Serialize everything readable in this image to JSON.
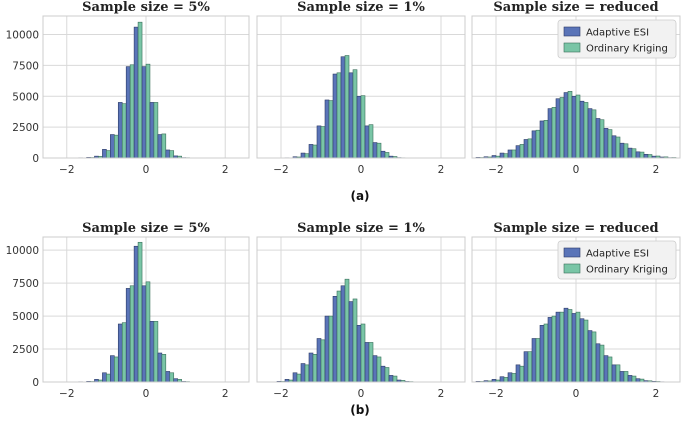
{
  "colors": {
    "adaptive_fill": "#5a74b8",
    "adaptive_edge": "#2b3a66",
    "kriging_fill": "#79c5a6",
    "kriging_edge": "#3a6f5b",
    "panel_bg": "#ffffff",
    "panel_border": "#cccccc",
    "grid": "#d9d9d9",
    "legend_bg": "#f2f2f2"
  },
  "figure": {
    "rows": [
      {
        "caption": "(a)"
      },
      {
        "caption": "(b)"
      }
    ]
  },
  "chart_data": [
    {
      "type": "bar",
      "row": "(a)",
      "title": "Sample size = 5%",
      "xlim": [
        -2.6,
        2.6
      ],
      "ylim": [
        0,
        11500
      ],
      "xticks": [
        -2,
        0,
        2
      ],
      "yticks": [
        0,
        2500,
        5000,
        7500,
        10000
      ],
      "xtick_labels": [
        "−2",
        "0",
        "2"
      ],
      "ytick_labels": [
        "0",
        "2500",
        "5000",
        "7500",
        "10000"
      ],
      "x": [
        -2.0,
        -1.8,
        -1.6,
        -1.4,
        -1.2,
        -1.0,
        -0.8,
        -0.6,
        -0.4,
        -0.2,
        0.0,
        0.2,
        0.4,
        0.6,
        0.8,
        1.0,
        1.2,
        1.4,
        1.6,
        1.8,
        2.0
      ],
      "series": [
        {
          "name": "Adaptive ESI",
          "values": [
            0,
            0,
            20,
            50,
            150,
            700,
            1900,
            4500,
            7400,
            10600,
            7400,
            4500,
            1900,
            650,
            170,
            30,
            0,
            0,
            0,
            0,
            0
          ]
        },
        {
          "name": "Ordinary Kriging",
          "values": [
            0,
            0,
            15,
            40,
            130,
            600,
            1850,
            4400,
            7550,
            11000,
            7600,
            4500,
            1950,
            600,
            150,
            25,
            0,
            0,
            0,
            0,
            0
          ]
        }
      ],
      "legend": false
    },
    {
      "type": "bar",
      "row": "(a)",
      "title": "Sample size = 1%",
      "xlim": [
        -2.6,
        2.6
      ],
      "ylim": [
        0,
        11500
      ],
      "xticks": [
        -2,
        0,
        2
      ],
      "yticks": [
        0,
        2500,
        5000,
        7500,
        10000
      ],
      "xtick_labels": [
        "−2",
        "0",
        "2"
      ],
      "ytick_labels": [],
      "x": [
        -2.0,
        -1.8,
        -1.6,
        -1.4,
        -1.2,
        -1.0,
        -0.8,
        -0.6,
        -0.4,
        -0.2,
        0.0,
        0.2,
        0.4,
        0.6,
        0.8,
        1.0,
        1.2,
        1.4,
        1.6,
        1.8,
        2.0
      ],
      "series": [
        {
          "name": "Adaptive ESI",
          "values": [
            0,
            20,
            100,
            400,
            1100,
            2600,
            4700,
            6800,
            8200,
            6900,
            5000,
            2600,
            1250,
            550,
            150,
            30,
            0,
            0,
            0,
            0,
            0
          ]
        },
        {
          "name": "Ordinary Kriging",
          "values": [
            0,
            15,
            80,
            350,
            1050,
            2550,
            4650,
            6900,
            8300,
            7150,
            5050,
            2700,
            1200,
            450,
            120,
            20,
            0,
            0,
            0,
            0,
            0
          ]
        }
      ],
      "legend": false
    },
    {
      "type": "bar",
      "row": "(a)",
      "title": "Sample size = reduced",
      "xlim": [
        -2.6,
        2.6
      ],
      "ylim": [
        0,
        11500
      ],
      "xticks": [
        -2,
        0,
        2
      ],
      "yticks": [
        0,
        2500,
        5000,
        7500,
        10000
      ],
      "xtick_labels": [
        "−2",
        "0",
        "2"
      ],
      "ytick_labels": [],
      "x": [
        -2.4,
        -2.2,
        -2.0,
        -1.8,
        -1.6,
        -1.4,
        -1.2,
        -1.0,
        -0.8,
        -0.6,
        -0.4,
        -0.2,
        0.0,
        0.2,
        0.4,
        0.6,
        0.8,
        1.0,
        1.2,
        1.4,
        1.6,
        1.8,
        2.0,
        2.2,
        2.4
      ],
      "series": [
        {
          "name": "Adaptive ESI",
          "values": [
            50,
            100,
            200,
            400,
            650,
            1000,
            1500,
            2200,
            3000,
            4000,
            4800,
            5300,
            5000,
            4600,
            4000,
            3200,
            2400,
            1800,
            1200,
            800,
            500,
            300,
            150,
            80,
            30
          ]
        },
        {
          "name": "Ordinary Kriging",
          "values": [
            40,
            80,
            150,
            350,
            650,
            1100,
            1550,
            2250,
            3050,
            4100,
            4900,
            5400,
            5100,
            4500,
            3900,
            3100,
            2300,
            1700,
            1150,
            750,
            480,
            280,
            160,
            90,
            40
          ]
        }
      ],
      "legend": true,
      "legend_position": "top-right"
    },
    {
      "type": "bar",
      "row": "(b)",
      "title": "Sample size = 5%",
      "xlim": [
        -2.6,
        2.6
      ],
      "ylim": [
        0,
        11000
      ],
      "xticks": [
        -2,
        0,
        2
      ],
      "yticks": [
        0,
        2500,
        5000,
        7500,
        10000
      ],
      "xtick_labels": [
        "−2",
        "0",
        "2"
      ],
      "ytick_labels": [
        "0",
        "2500",
        "5000",
        "7500",
        "10000"
      ],
      "x": [
        -2.0,
        -1.8,
        -1.6,
        -1.4,
        -1.2,
        -1.0,
        -0.8,
        -0.6,
        -0.4,
        -0.2,
        0.0,
        0.2,
        0.4,
        0.6,
        0.8,
        1.0,
        1.2,
        1.4,
        1.6,
        1.8,
        2.0
      ],
      "series": [
        {
          "name": "Adaptive ESI",
          "values": [
            0,
            0,
            20,
            50,
            200,
            700,
            2000,
            4400,
            7100,
            10300,
            7300,
            4600,
            2200,
            800,
            250,
            40,
            0,
            0,
            0,
            0,
            0
          ]
        },
        {
          "name": "Ordinary Kriging",
          "values": [
            0,
            0,
            15,
            40,
            150,
            600,
            1900,
            4500,
            7300,
            10600,
            7600,
            4600,
            2100,
            700,
            200,
            30,
            0,
            0,
            0,
            0,
            0
          ]
        }
      ],
      "legend": false
    },
    {
      "type": "bar",
      "row": "(b)",
      "title": "Sample size = 1%",
      "xlim": [
        -2.6,
        2.6
      ],
      "ylim": [
        0,
        11000
      ],
      "xticks": [
        -2,
        0,
        2
      ],
      "yticks": [
        0,
        2500,
        5000,
        7500,
        10000
      ],
      "xtick_labels": [
        "−2",
        "0",
        "2"
      ],
      "ytick_labels": [],
      "x": [
        -2.0,
        -1.8,
        -1.6,
        -1.4,
        -1.2,
        -1.0,
        -0.8,
        -0.6,
        -0.4,
        -0.2,
        0.0,
        0.2,
        0.4,
        0.6,
        0.8,
        1.0,
        1.2,
        1.4,
        1.6,
        1.8,
        2.0
      ],
      "series": [
        {
          "name": "Adaptive ESI",
          "values": [
            50,
            200,
            700,
            1400,
            2200,
            3300,
            5000,
            6500,
            7300,
            6100,
            4300,
            3000,
            2000,
            1200,
            500,
            150,
            40,
            0,
            0,
            0,
            0
          ]
        },
        {
          "name": "Ordinary Kriging",
          "values": [
            40,
            150,
            600,
            1300,
            2100,
            3200,
            5000,
            6900,
            7800,
            6300,
            4400,
            3000,
            1900,
            1100,
            450,
            120,
            30,
            0,
            0,
            0,
            0
          ]
        }
      ],
      "legend": false
    },
    {
      "type": "bar",
      "row": "(b)",
      "title": "Sample size = reduced",
      "xlim": [
        -2.6,
        2.6
      ],
      "ylim": [
        0,
        11000
      ],
      "xticks": [
        -2,
        0,
        2
      ],
      "yticks": [
        0,
        2500,
        5000,
        7500,
        10000
      ],
      "xtick_labels": [
        "−2",
        "0",
        "2"
      ],
      "ytick_labels": [],
      "x": [
        -2.4,
        -2.2,
        -2.0,
        -1.8,
        -1.6,
        -1.4,
        -1.2,
        -1.0,
        -0.8,
        -0.6,
        -0.4,
        -0.2,
        0.0,
        0.2,
        0.4,
        0.6,
        0.8,
        1.0,
        1.2,
        1.4,
        1.6,
        1.8,
        2.0,
        2.2,
        2.4
      ],
      "series": [
        {
          "name": "Adaptive ESI",
          "values": [
            50,
            100,
            200,
            400,
            700,
            1300,
            2300,
            3300,
            4300,
            4900,
            5300,
            5600,
            5200,
            4800,
            3900,
            2900,
            2000,
            1300,
            800,
            500,
            250,
            100,
            50,
            20,
            10
          ]
        },
        {
          "name": "Ordinary Kriging",
          "values": [
            40,
            80,
            150,
            350,
            650,
            1200,
            2300,
            3300,
            4400,
            5000,
            5300,
            5500,
            5300,
            4700,
            3800,
            2800,
            1900,
            1300,
            800,
            450,
            220,
            90,
            40,
            15,
            5
          ]
        }
      ],
      "legend": true,
      "legend_position": "top-right"
    }
  ]
}
